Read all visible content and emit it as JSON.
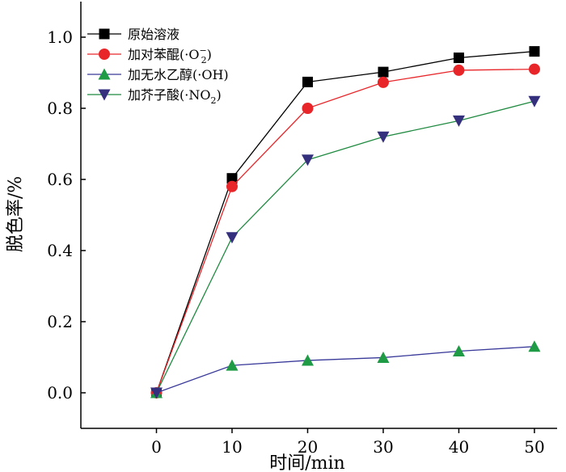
{
  "chart_data": {
    "type": "line",
    "title": "",
    "xlabel": "时间/min",
    "ylabel": "脱色率/%",
    "xlim": [
      -10,
      53
    ],
    "ylim": [
      -0.1,
      1.1
    ],
    "x": [
      0,
      10,
      20,
      30,
      40,
      50
    ],
    "xticks": [
      0,
      10,
      20,
      30,
      40,
      50
    ],
    "yticks": [
      0.0,
      0.2,
      0.4,
      0.6,
      0.8,
      1.0
    ],
    "xtick_labels": [
      "0",
      "10",
      "20",
      "30",
      "40",
      "50"
    ],
    "ytick_labels": [
      "0.0",
      "0.2",
      "0.4",
      "0.6",
      "0.8",
      "1.0"
    ],
    "grid": false,
    "legend_position": "top-left",
    "series": [
      {
        "name": "原始溶液",
        "label_main": "原始溶液",
        "label_sup": "",
        "label_sub": "",
        "label_close": "",
        "values": [
          0.0,
          0.603,
          0.874,
          0.902,
          0.942,
          0.96
        ],
        "color": "#000000",
        "marker": "square"
      },
      {
        "name": "加对苯醌(·O2−)",
        "label_main": "加对苯醌(·O",
        "label_sup": "−",
        "label_sub": "2",
        "label_close": ")",
        "values": [
          0.0,
          0.58,
          0.8,
          0.873,
          0.907,
          0.91
        ],
        "color": "#e8262a",
        "marker": "circle"
      },
      {
        "name": "加无水乙醇(·OH)",
        "label_main": "加无水乙醇(·OH)",
        "label_sup": "",
        "label_sub": "",
        "label_close": "",
        "values": [
          0.0,
          0.077,
          0.091,
          0.099,
          0.117,
          0.13
        ],
        "color": "#39399a",
        "marker_color": "#1f9a45",
        "marker": "triangle-up"
      },
      {
        "name": "加芥子酸(·NO2)",
        "label_main": "加芥子酸(·NO",
        "label_sup": "",
        "label_sub": "2",
        "label_close": ")",
        "values": [
          0.0,
          0.437,
          0.655,
          0.72,
          0.765,
          0.82
        ],
        "color": "#1f8a40",
        "marker_color": "#35307e",
        "marker": "triangle-down"
      }
    ]
  }
}
